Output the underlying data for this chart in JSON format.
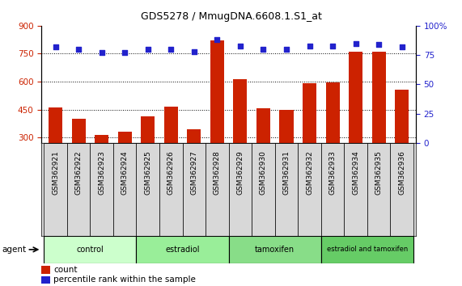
{
  "title": "GDS5278 / MmugDNA.6608.1.S1_at",
  "samples": [
    "GSM362921",
    "GSM362922",
    "GSM362923",
    "GSM362924",
    "GSM362925",
    "GSM362926",
    "GSM362927",
    "GSM362928",
    "GSM362929",
    "GSM362930",
    "GSM362931",
    "GSM362932",
    "GSM362933",
    "GSM362934",
    "GSM362935",
    "GSM362936"
  ],
  "counts": [
    460,
    400,
    315,
    330,
    415,
    465,
    345,
    820,
    615,
    455,
    450,
    590,
    595,
    760,
    760,
    555
  ],
  "percentiles": [
    82,
    80,
    77,
    77,
    80,
    80,
    78,
    88,
    83,
    80,
    80,
    83,
    83,
    85,
    84,
    82
  ],
  "groups": [
    {
      "label": "control",
      "start": 0,
      "end": 4,
      "color": "#ccffcc"
    },
    {
      "label": "estradiol",
      "start": 4,
      "end": 8,
      "color": "#99ee99"
    },
    {
      "label": "tamoxifen",
      "start": 8,
      "end": 12,
      "color": "#88dd88"
    },
    {
      "label": "estradiol and tamoxifen",
      "start": 12,
      "end": 16,
      "color": "#66cc66"
    }
  ],
  "ylim_left": [
    270,
    900
  ],
  "ylim_right": [
    0,
    100
  ],
  "yticks_left": [
    300,
    450,
    600,
    750,
    900
  ],
  "yticks_right": [
    0,
    25,
    50,
    75,
    100
  ],
  "bar_color": "#cc2200",
  "dot_color": "#2222cc",
  "background_color": "#ffffff"
}
